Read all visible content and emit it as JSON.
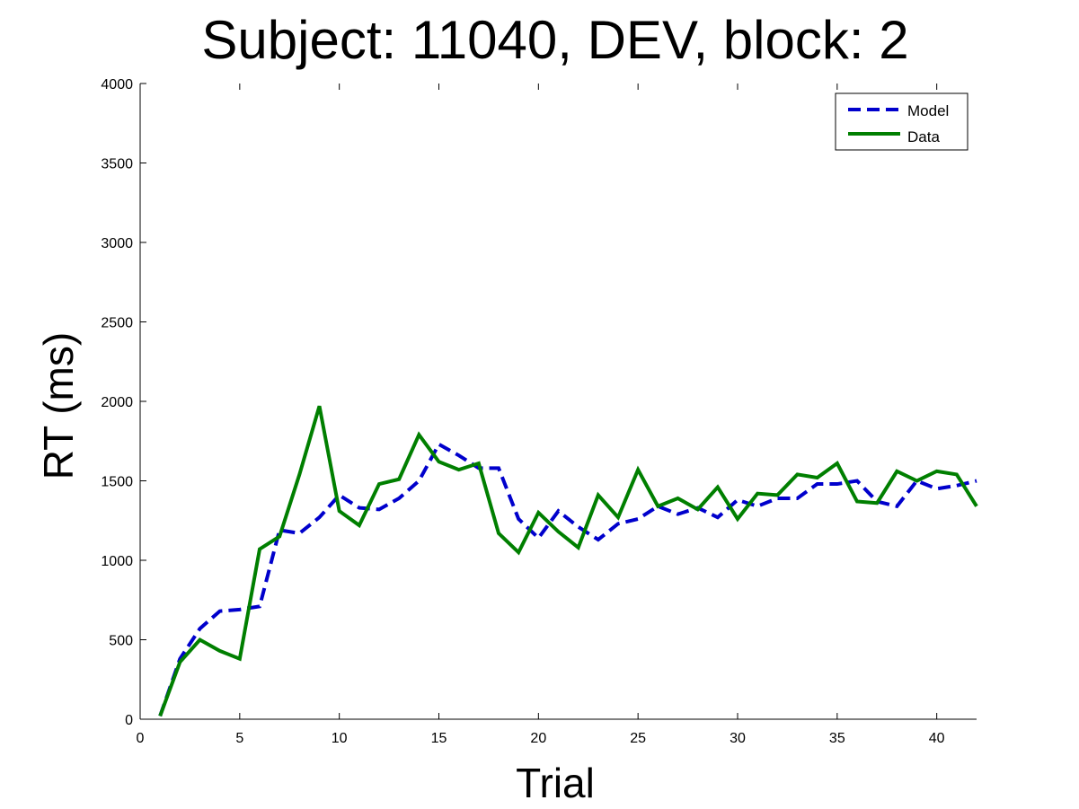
{
  "chart_data": {
    "type": "line",
    "title": "Subject: 11040, DEV, block: 2",
    "xlabel": "Trial",
    "ylabel": "RT (ms)",
    "xlim": [
      0,
      42
    ],
    "ylim": [
      0,
      4000
    ],
    "xticks": [
      0,
      5,
      10,
      15,
      20,
      25,
      30,
      35,
      40
    ],
    "yticks": [
      0,
      500,
      1000,
      1500,
      2000,
      2500,
      3000,
      3500,
      4000
    ],
    "grid": false,
    "legend_position": "top-right",
    "x": [
      1,
      2,
      3,
      4,
      5,
      6,
      7,
      8,
      9,
      10,
      11,
      12,
      13,
      14,
      15,
      16,
      17,
      18,
      19,
      20,
      21,
      22,
      23,
      24,
      25,
      26,
      27,
      28,
      29,
      30,
      31,
      32,
      33,
      34,
      35,
      36,
      37,
      38,
      39,
      40,
      41,
      42
    ],
    "series": [
      {
        "name": "Model",
        "color": "#0000cc",
        "style": "dashed",
        "values": [
          20,
          380,
          570,
          680,
          690,
          710,
          1190,
          1170,
          1270,
          1410,
          1330,
          1320,
          1390,
          1500,
          1730,
          1660,
          1580,
          1580,
          1260,
          1140,
          1310,
          1210,
          1130,
          1230,
          1260,
          1340,
          1290,
          1330,
          1270,
          1380,
          1340,
          1390,
          1390,
          1480,
          1480,
          1500,
          1370,
          1340,
          1500,
          1450,
          1470,
          1500
        ]
      },
      {
        "name": "Data",
        "color": "#007f00",
        "style": "solid",
        "values": [
          20,
          360,
          500,
          430,
          380,
          1070,
          1150,
          1540,
          1970,
          1310,
          1220,
          1480,
          1510,
          1790,
          1620,
          1570,
          1610,
          1170,
          1050,
          1300,
          1180,
          1080,
          1410,
          1270,
          1570,
          1340,
          1390,
          1320,
          1460,
          1260,
          1420,
          1410,
          1540,
          1520,
          1610,
          1370,
          1360,
          1560,
          1500,
          1560,
          1540,
          1340
        ]
      }
    ]
  }
}
